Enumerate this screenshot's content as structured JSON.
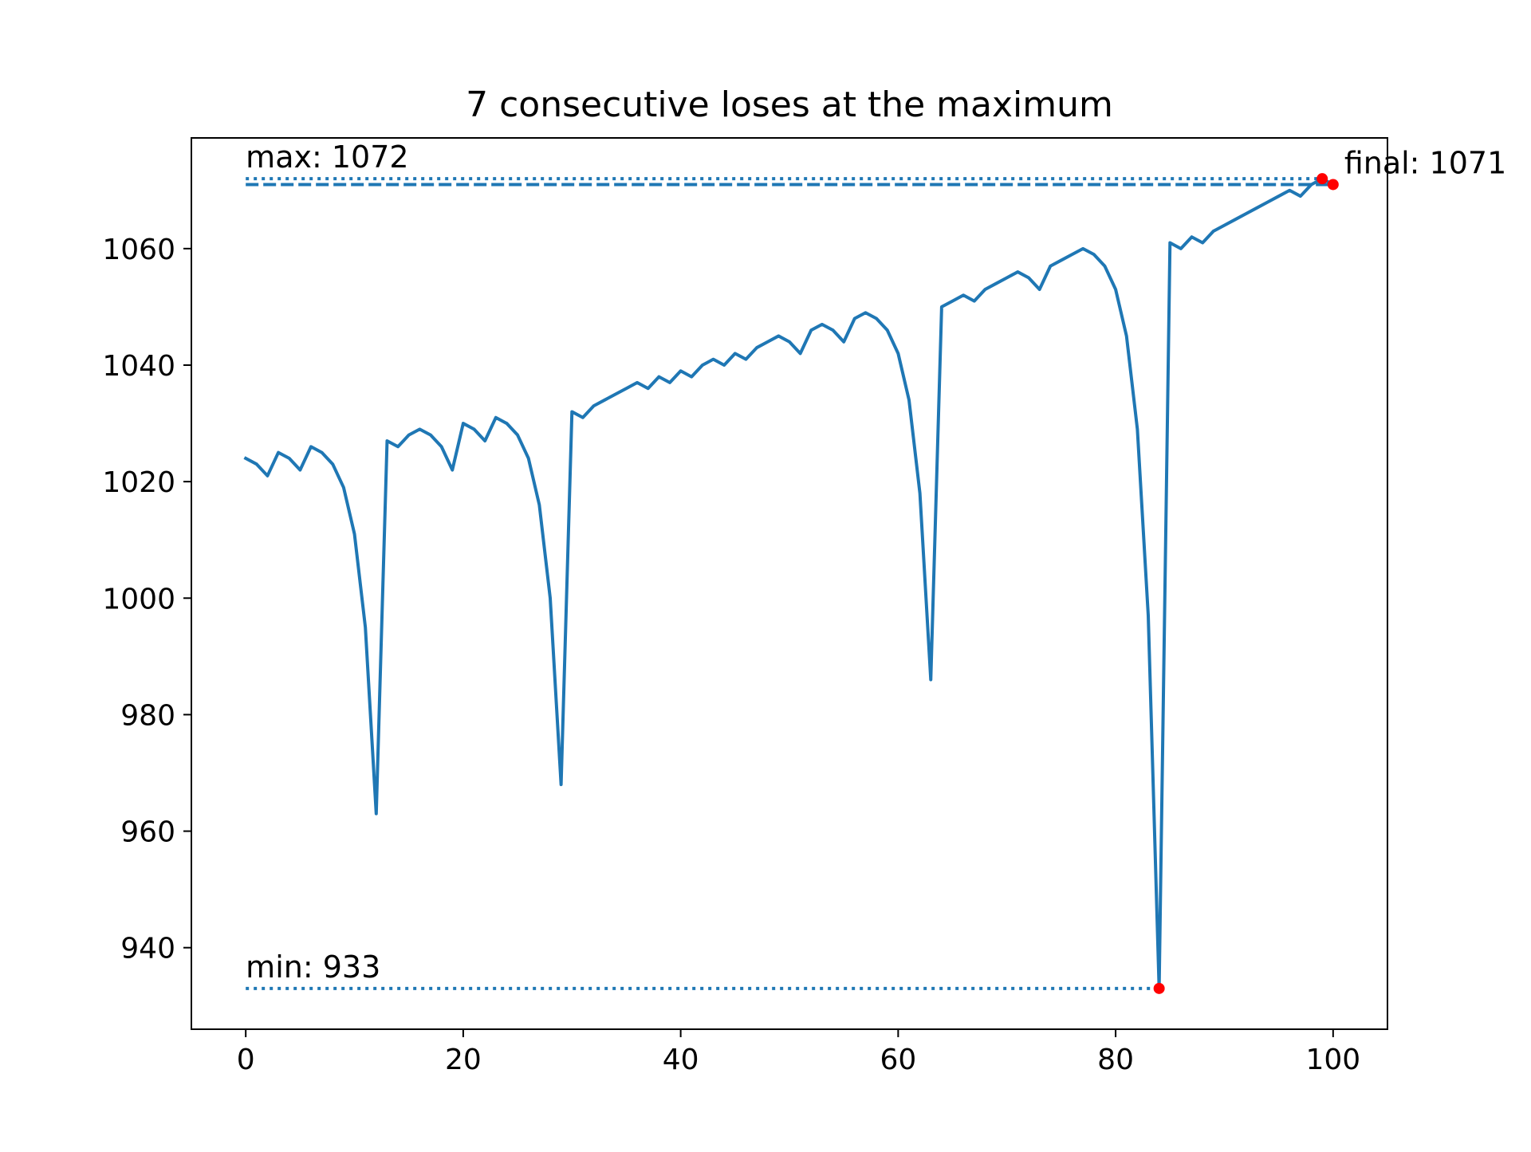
{
  "chart_data": {
    "type": "line",
    "title": "7 consecutive loses at the maximum",
    "xlabel": "",
    "ylabel": "",
    "xlim": [
      -5,
      105
    ],
    "ylim": [
      926,
      1079
    ],
    "xticks": [
      0,
      20,
      40,
      60,
      80,
      100
    ],
    "yticks": [
      940,
      960,
      980,
      1000,
      1020,
      1040,
      1060
    ],
    "grid": false,
    "line_color": "#1f77b4",
    "marker_color": "#ff0000",
    "series": [
      {
        "x": [
          0,
          1,
          2,
          3,
          4,
          5,
          6,
          7,
          8,
          9,
          10,
          11,
          12,
          13,
          14,
          15,
          16,
          17,
          18,
          19,
          20,
          21,
          22,
          23,
          24,
          25,
          26,
          27,
          28,
          29,
          30,
          31,
          32,
          33,
          34,
          35,
          36,
          37,
          38,
          39,
          40,
          41,
          42,
          43,
          44,
          45,
          46,
          47,
          48,
          49,
          50,
          51,
          52,
          53,
          54,
          55,
          56,
          57,
          58,
          59,
          60,
          61,
          62,
          63,
          64,
          65,
          66,
          67,
          68,
          69,
          70,
          71,
          72,
          73,
          74,
          75,
          76,
          77,
          78,
          79,
          80,
          81,
          82,
          83,
          84,
          85,
          86,
          87,
          88,
          89,
          90,
          91,
          92,
          93,
          94,
          95,
          96,
          97,
          98,
          99,
          100
        ],
        "y": [
          1024,
          1023,
          1021,
          1025,
          1024,
          1022,
          1026,
          1025,
          1023,
          1019,
          1011,
          995,
          963,
          1027,
          1026,
          1028,
          1029,
          1028,
          1026,
          1022,
          1030,
          1029,
          1027,
          1031,
          1030,
          1028,
          1024,
          1016,
          1000,
          968,
          1032,
          1031,
          1033,
          1034,
          1035,
          1036,
          1037,
          1036,
          1038,
          1037,
          1039,
          1038,
          1040,
          1041,
          1040,
          1042,
          1041,
          1043,
          1044,
          1045,
          1044,
          1042,
          1046,
          1047,
          1046,
          1044,
          1048,
          1049,
          1048,
          1046,
          1042,
          1034,
          1018,
          986,
          1050,
          1051,
          1052,
          1051,
          1053,
          1054,
          1055,
          1056,
          1055,
          1053,
          1057,
          1058,
          1059,
          1060,
          1059,
          1057,
          1053,
          1045,
          1029,
          997,
          933,
          1061,
          1060,
          1062,
          1061,
          1063,
          1064,
          1065,
          1066,
          1067,
          1068,
          1069,
          1070,
          1069,
          1071,
          1072,
          1071
        ]
      }
    ],
    "reference_lines": [
      {
        "label": "max: 1072",
        "y": 1072,
        "x_start": 0,
        "x_end": 99,
        "style": "dotted"
      },
      {
        "label": "min: 933",
        "y": 933,
        "x_start": 0,
        "x_end": 84,
        "style": "dotted"
      },
      {
        "label": "final: 1071",
        "y": 1071,
        "x_start": 0,
        "x_end": 100,
        "style": "dashed"
      }
    ],
    "markers": [
      {
        "x": 99,
        "y": 1072
      },
      {
        "x": 84,
        "y": 933
      },
      {
        "x": 100,
        "y": 1071
      }
    ]
  }
}
